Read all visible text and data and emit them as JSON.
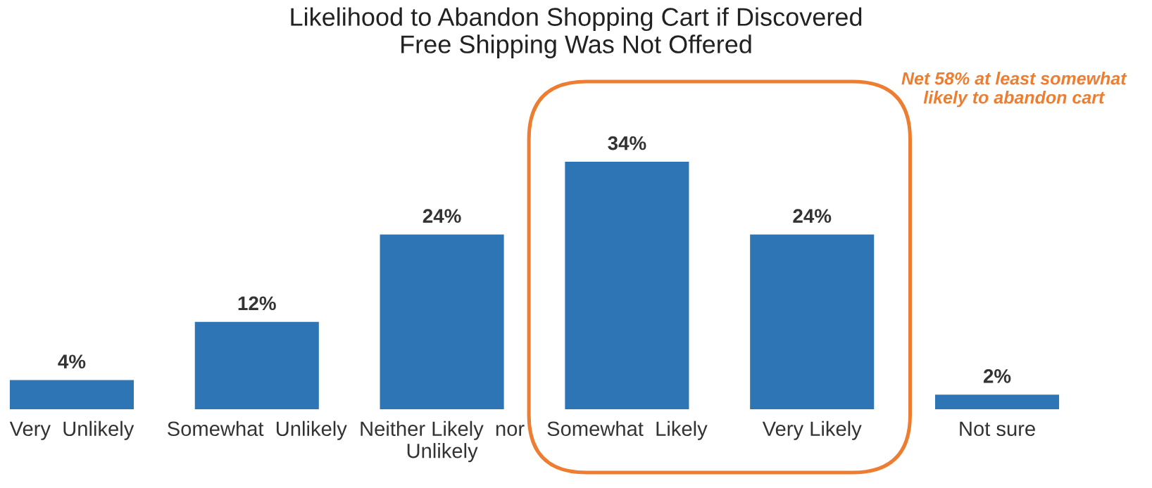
{
  "chart_data": {
    "type": "bar",
    "title": "Likelihood to Abandon Shopping Cart if Discovered\nFree Shipping Was Not Offered",
    "categories": [
      "Very  Unlikely",
      "Somewhat  Unlikely",
      "Neither Likely  nor\nUnlikely",
      "Somewhat  Likely",
      "Very Likely",
      "Not sure"
    ],
    "values": [
      4,
      12,
      24,
      34,
      24,
      2
    ],
    "value_labels": [
      "4%",
      "12%",
      "24%",
      "34%",
      "24%",
      "2%"
    ],
    "color": "#2e75b6",
    "annotations": [
      "Net 58% at least somewhat\nlikely to abandon cart"
    ],
    "grid": false,
    "legend": false
  }
}
